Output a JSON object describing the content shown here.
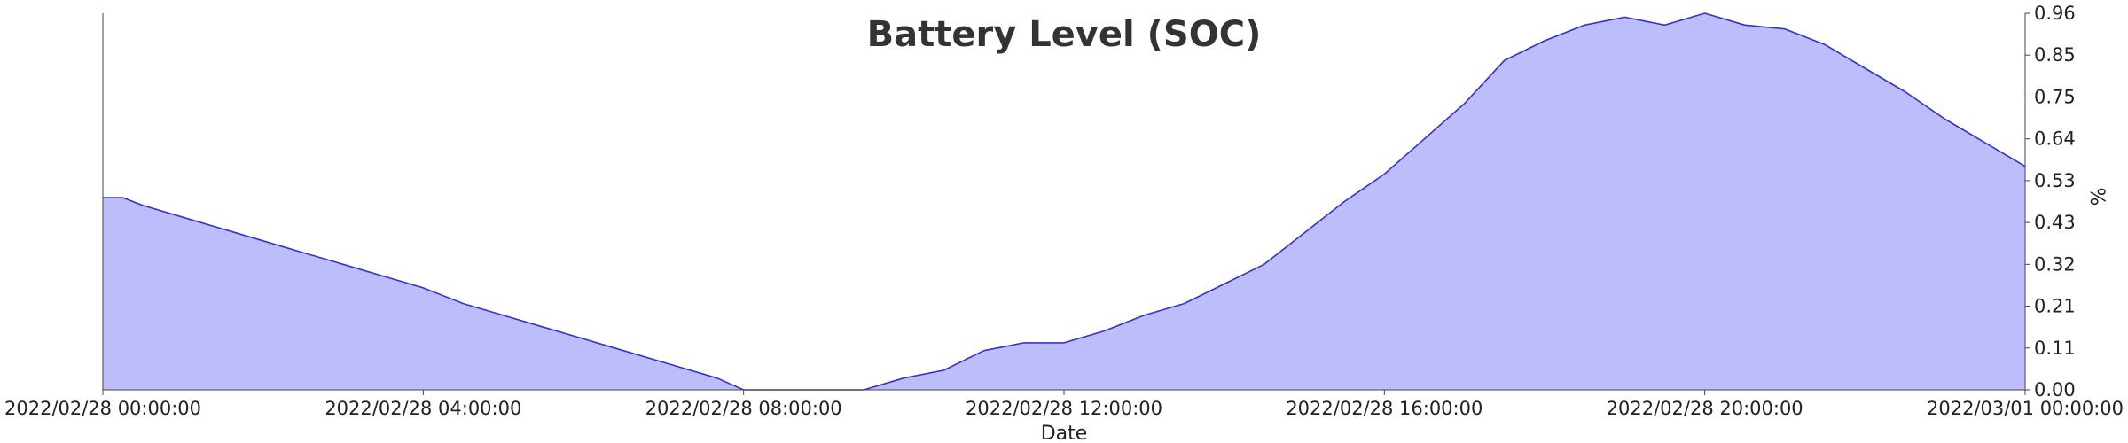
{
  "chart_data": {
    "type": "area",
    "title": "Battery Level (SOC)",
    "xlabel": "Date",
    "ylabel": "%",
    "x_ticks": [
      "2022/02/28 00:00:00",
      "2022/02/28 04:00:00",
      "2022/02/28 08:00:00",
      "2022/02/28 12:00:00",
      "2022/02/28 16:00:00",
      "2022/02/28 20:00:00",
      "2022/03/01 00:00:00"
    ],
    "y_ticks": [
      "0.00",
      "0.11",
      "0.21",
      "0.32",
      "0.43",
      "0.53",
      "0.64",
      "0.75",
      "0.85",
      "0.96"
    ],
    "ylim": [
      0,
      0.96
    ],
    "xlim": [
      "2022/02/28 00:00:00",
      "2022/03/01 00:00:00"
    ],
    "y_axis_side": "right",
    "grid": false,
    "legend": "none",
    "fill_color": "#bdbdfc",
    "line_color": "#3333cc",
    "series": [
      {
        "x": [
          "2022/02/28 00:00:00",
          "2022/02/28 00:15:00",
          "2022/02/28 00:30:00",
          "2022/02/28 01:00:00",
          "2022/02/28 01:30:00",
          "2022/02/28 02:00:00",
          "2022/02/28 02:30:00",
          "2022/02/28 03:00:00",
          "2022/02/28 03:30:00",
          "2022/02/28 04:00:00",
          "2022/02/28 04:30:00",
          "2022/02/28 05:00:00",
          "2022/02/28 05:30:00",
          "2022/02/28 06:00:00",
          "2022/02/28 06:20:00",
          "2022/02/28 07:00:00",
          "2022/02/28 07:40:00",
          "2022/02/28 08:00:00",
          "2022/02/28 08:30:00",
          "2022/02/28 09:00:00",
          "2022/02/28 09:30:00",
          "2022/02/28 10:00:00",
          "2022/02/28 10:30:00",
          "2022/02/28 11:00:00",
          "2022/02/28 11:30:00",
          "2022/02/28 12:00:00",
          "2022/02/28 12:30:00",
          "2022/02/28 13:00:00",
          "2022/02/28 13:30:00",
          "2022/02/28 14:00:00",
          "2022/02/28 14:30:00",
          "2022/02/28 15:00:00",
          "2022/02/28 15:30:00",
          "2022/02/28 16:00:00",
          "2022/02/28 16:30:00",
          "2022/02/28 17:00:00",
          "2022/02/28 17:30:00",
          "2022/02/28 18:00:00",
          "2022/02/28 18:30:00",
          "2022/02/28 19:00:00",
          "2022/02/28 19:30:00",
          "2022/02/28 20:00:00",
          "2022/02/28 20:30:00",
          "2022/02/28 21:00:00",
          "2022/02/28 21:30:00",
          "2022/02/28 22:00:00",
          "2022/02/28 22:30:00",
          "2022/02/28 23:00:00",
          "2022/02/28 23:30:00",
          "2022/03/01 00:00:00"
        ],
        "values": [
          0.49,
          0.49,
          0.47,
          0.44,
          0.41,
          0.38,
          0.35,
          0.32,
          0.29,
          0.26,
          0.22,
          0.19,
          0.16,
          0.13,
          0.11,
          0.07,
          0.03,
          0.0,
          0.0,
          0.0,
          0.0,
          0.03,
          0.05,
          0.1,
          0.12,
          0.12,
          0.15,
          0.19,
          0.22,
          0.27,
          0.32,
          0.4,
          0.48,
          0.55,
          0.64,
          0.73,
          0.84,
          0.89,
          0.93,
          0.95,
          0.93,
          0.96,
          0.93,
          0.92,
          0.88,
          0.82,
          0.76,
          0.69,
          0.63,
          0.57
        ]
      }
    ]
  }
}
